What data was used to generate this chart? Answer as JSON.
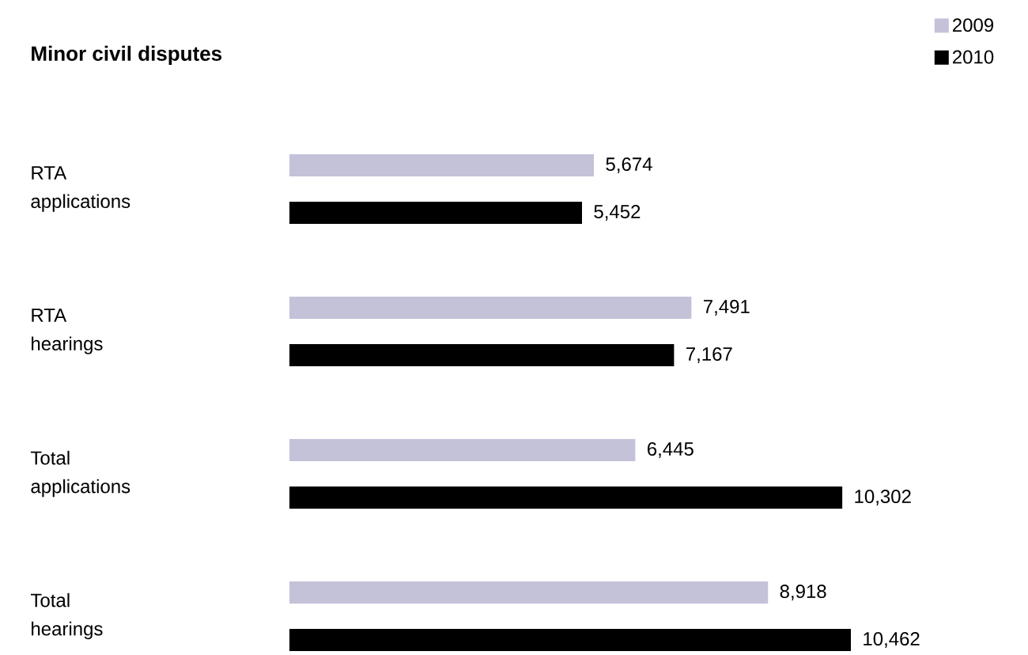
{
  "chart_data": {
    "type": "bar",
    "orientation": "horizontal",
    "title": "Minor civil disputes",
    "categories": [
      "RTA applications",
      "RTA hearings",
      "Total applications",
      "Total hearings"
    ],
    "series": [
      {
        "name": "2009",
        "color": "#c3c2d9",
        "values": [
          5674,
          7491,
          6445,
          8918
        ],
        "value_labels": [
          "5,674",
          "7,491",
          "6,445",
          "8,918"
        ]
      },
      {
        "name": "2010",
        "color": "#000000",
        "values": [
          5452,
          7167,
          10302,
          10462
        ],
        "value_labels": [
          "5,452",
          "7,167",
          "10,302",
          "10,462"
        ]
      }
    ],
    "legend": "top right"
  }
}
